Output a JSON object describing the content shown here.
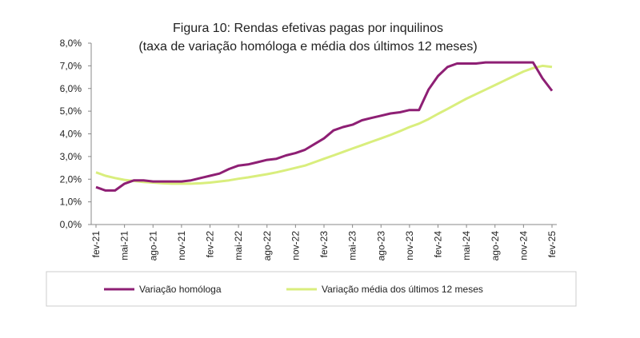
{
  "chart_data": {
    "type": "line",
    "title": "Figura 10: Rendas efetivas pagas por inquilinos",
    "subtitle": "(taxa de variação homóloga e média dos últimos 12 meses)",
    "categories": [
      "fev-21",
      null,
      null,
      "mai-21",
      null,
      null,
      "ago-21",
      null,
      null,
      "nov-21",
      null,
      null,
      "fev-22",
      null,
      null,
      "mai-22",
      null,
      null,
      "ago-22",
      null,
      null,
      "nov-22",
      null,
      null,
      "fev-23",
      null,
      null,
      "mai-23",
      null,
      null,
      "ago-23",
      null,
      null,
      "nov-23",
      null,
      null,
      "fev-24",
      null,
      null,
      "mai-24",
      null,
      null,
      "ago-24",
      null,
      null,
      "nov-24",
      null,
      null,
      "fev-25"
    ],
    "series": [
      {
        "name": "Variação homóloga",
        "color": "#8e1f74",
        "values": [
          1.65,
          1.5,
          1.5,
          1.8,
          1.95,
          1.95,
          1.9,
          1.9,
          1.9,
          1.9,
          1.95,
          2.05,
          2.15,
          2.25,
          2.45,
          2.6,
          2.65,
          2.75,
          2.85,
          2.9,
          3.05,
          3.15,
          3.3,
          3.55,
          3.8,
          4.15,
          4.3,
          4.4,
          4.6,
          4.7,
          4.8,
          4.9,
          4.95,
          5.05,
          5.05,
          5.95,
          6.55,
          6.95,
          7.1,
          7.1,
          7.1,
          7.15,
          7.15,
          7.15,
          7.15,
          7.15,
          7.15,
          6.45,
          5.9
        ]
      },
      {
        "name": "Variação média dos últimos 12 meses",
        "color": "#d9ee7d",
        "values": [
          2.3,
          2.15,
          2.05,
          1.97,
          1.92,
          1.88,
          1.85,
          1.82,
          1.8,
          1.8,
          1.8,
          1.82,
          1.85,
          1.9,
          1.95,
          2.02,
          2.08,
          2.15,
          2.22,
          2.3,
          2.4,
          2.5,
          2.6,
          2.75,
          2.9,
          3.05,
          3.2,
          3.35,
          3.5,
          3.65,
          3.8,
          3.95,
          4.12,
          4.3,
          4.45,
          4.65,
          4.88,
          5.1,
          5.33,
          5.55,
          5.75,
          5.95,
          6.15,
          6.35,
          6.55,
          6.75,
          6.9,
          7.0,
          6.95
        ]
      }
    ],
    "ylim": [
      0,
      8
    ],
    "yticks": [
      {
        "value": 0,
        "label": "0,0%"
      },
      {
        "value": 1,
        "label": "1,0%"
      },
      {
        "value": 2,
        "label": "2,0%"
      },
      {
        "value": 3,
        "label": "3,0%"
      },
      {
        "value": 4,
        "label": "4,0%"
      },
      {
        "value": 5,
        "label": "5,0%"
      },
      {
        "value": 6,
        "label": "6,0%"
      },
      {
        "value": 7,
        "label": "7,0%"
      },
      {
        "value": 8,
        "label": "8,0%"
      }
    ],
    "grid": false
  }
}
